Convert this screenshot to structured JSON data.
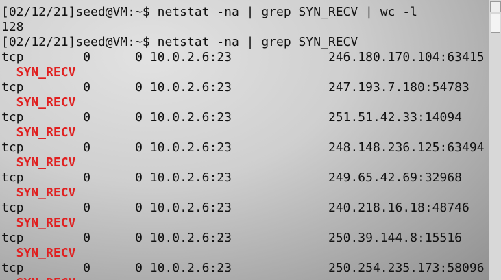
{
  "terminal": {
    "commands": [
      {
        "prompt": "[02/12/21]seed@VM:~$",
        "command": "netstat -na | grep SYN_RECV | wc -l"
      },
      {
        "prompt": "[02/12/21]seed@VM:~$",
        "command": "netstat -na | grep SYN_RECV"
      }
    ],
    "count_output": 128,
    "rows": [
      {
        "proto": "tcp",
        "recv_q": 0,
        "send_q": 0,
        "local": "10.0.2.6:23",
        "foreign": "246.180.170.104:63415",
        "state": "SYN_RECV"
      },
      {
        "proto": "tcp",
        "recv_q": 0,
        "send_q": 0,
        "local": "10.0.2.6:23",
        "foreign": "247.193.7.180:54783",
        "state": "SYN_RECV"
      },
      {
        "proto": "tcp",
        "recv_q": 0,
        "send_q": 0,
        "local": "10.0.2.6:23",
        "foreign": "251.51.42.33:14094",
        "state": "SYN_RECV"
      },
      {
        "proto": "tcp",
        "recv_q": 0,
        "send_q": 0,
        "local": "10.0.2.6:23",
        "foreign": "248.148.236.125:63494",
        "state": "SYN_RECV"
      },
      {
        "proto": "tcp",
        "recv_q": 0,
        "send_q": 0,
        "local": "10.0.2.6:23",
        "foreign": "249.65.42.69:32968",
        "state": "SYN_RECV"
      },
      {
        "proto": "tcp",
        "recv_q": 0,
        "send_q": 0,
        "local": "10.0.2.6:23",
        "foreign": "240.218.16.18:48746",
        "state": "SYN_RECV"
      },
      {
        "proto": "tcp",
        "recv_q": 0,
        "send_q": 0,
        "local": "10.0.2.6:23",
        "foreign": "250.39.144.8:15516",
        "state": "SYN_RECV"
      },
      {
        "proto": "tcp",
        "recv_q": 0,
        "send_q": 0,
        "local": "10.0.2.6:23",
        "foreign": "250.254.235.173:58096",
        "state": "SYN_RECV"
      }
    ]
  }
}
